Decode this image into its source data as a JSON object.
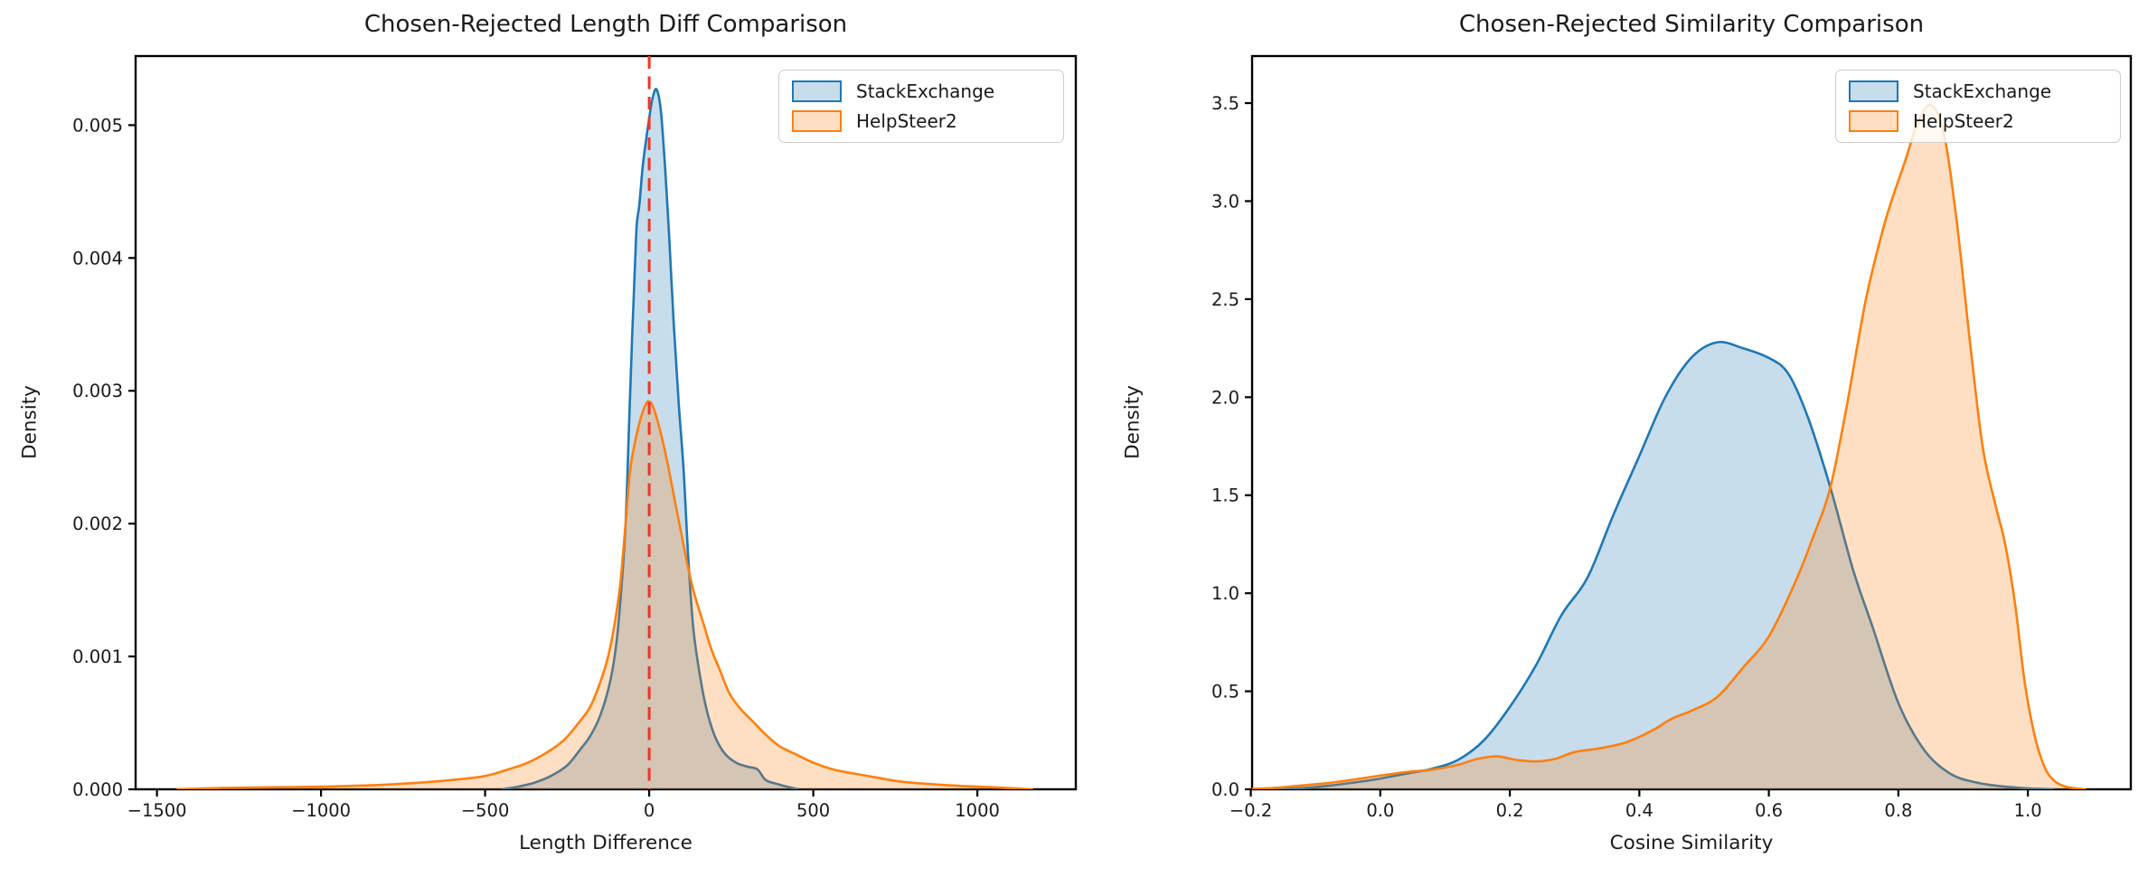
{
  "figure": {
    "background": "#ffffff"
  },
  "colors": {
    "stackexchange_line": "#1f77b4",
    "helpsteer2_line": "#ff7f0e",
    "fill_alpha": 0.25,
    "zero_line_red": "#ee3524",
    "axis_color": "#000000",
    "legend_border": "#cccccc"
  },
  "legend": {
    "items": [
      {
        "label": "StackExchange",
        "color": "#1f77b4"
      },
      {
        "label": "HelpSteer2",
        "color": "#ff7f0e"
      }
    ]
  },
  "chart_data": [
    {
      "type": "area",
      "subtype": "kde-density",
      "title": "Chosen-Rejected Length Diff Comparison",
      "xlabel": "Length Difference",
      "ylabel": "Density",
      "xlim": [
        -1565,
        1300
      ],
      "ylim": [
        0,
        0.00552
      ],
      "grid": false,
      "legend_position": "upper right",
      "xticks": {
        "values": [
          -1500,
          -1000,
          -500,
          0,
          500,
          1000
        ],
        "labels": [
          "−1500",
          "−1000",
          "−500",
          "0",
          "500",
          "1000"
        ]
      },
      "yticks": {
        "values": [
          0,
          0.001,
          0.002,
          0.003,
          0.004,
          0.005
        ],
        "labels": [
          "0.000",
          "0.001",
          "0.002",
          "0.003",
          "0.004",
          "0.005"
        ]
      },
      "vline": {
        "x": 0,
        "color": "#ee3524",
        "style": "dashed"
      },
      "series": [
        {
          "name": "StackExchange",
          "color": "#1f77b4",
          "peak": {
            "x": 22,
            "y": 0.00527
          },
          "points": [
            [
              -450,
              0
            ],
            [
              -400,
              2e-05
            ],
            [
              -350,
              5e-05
            ],
            [
              -300,
              0.0001
            ],
            [
              -250,
              0.00018
            ],
            [
              -210,
              0.0003
            ],
            [
              -180,
              0.0004
            ],
            [
              -150,
              0.00055
            ],
            [
              -120,
              0.0008
            ],
            [
              -100,
              0.0011
            ],
            [
              -85,
              0.0015
            ],
            [
              -72,
              0.002
            ],
            [
              -62,
              0.0027
            ],
            [
              -52,
              0.0034
            ],
            [
              -44,
              0.0039
            ],
            [
              -38,
              0.00425
            ],
            [
              -30,
              0.0044
            ],
            [
              -20,
              0.00468
            ],
            [
              -10,
              0.00488
            ],
            [
              0,
              0.00505
            ],
            [
              10,
              0.0052
            ],
            [
              22,
              0.00527
            ],
            [
              35,
              0.00512
            ],
            [
              48,
              0.0047
            ],
            [
              60,
              0.0042
            ],
            [
              75,
              0.0035
            ],
            [
              90,
              0.0029
            ],
            [
              105,
              0.0024
            ],
            [
              120,
              0.0017
            ],
            [
              135,
              0.0012
            ],
            [
              155,
              0.00085
            ],
            [
              175,
              0.0006
            ],
            [
              200,
              0.0004
            ],
            [
              230,
              0.00027
            ],
            [
              265,
              0.0002
            ],
            [
              300,
              0.00017
            ],
            [
              330,
              0.00015
            ],
            [
              355,
              7e-05
            ],
            [
              390,
              4e-05
            ],
            [
              420,
              2e-05
            ],
            [
              455,
              0
            ]
          ]
        },
        {
          "name": "HelpSteer2",
          "color": "#ff7f0e",
          "peak": {
            "x": 0,
            "y": 0.00292
          },
          "points": [
            [
              -1440,
              0
            ],
            [
              -1300,
              1e-05
            ],
            [
              -1150,
              1.5e-05
            ],
            [
              -1000,
              2e-05
            ],
            [
              -850,
              3e-05
            ],
            [
              -700,
              5e-05
            ],
            [
              -600,
              7e-05
            ],
            [
              -500,
              0.0001
            ],
            [
              -430,
              0.00015
            ],
            [
              -370,
              0.0002
            ],
            [
              -310,
              0.00028
            ],
            [
              -260,
              0.00037
            ],
            [
              -215,
              0.0005
            ],
            [
              -180,
              0.00062
            ],
            [
              -150,
              0.0008
            ],
            [
              -125,
              0.001
            ],
            [
              -105,
              0.00125
            ],
            [
              -88,
              0.00155
            ],
            [
              -72,
              0.002
            ],
            [
              -58,
              0.0024
            ],
            [
              -42,
              0.00263
            ],
            [
              -25,
              0.0028
            ],
            [
              -10,
              0.0029
            ],
            [
              0,
              0.00292
            ],
            [
              12,
              0.00288
            ],
            [
              28,
              0.00275
            ],
            [
              45,
              0.00258
            ],
            [
              62,
              0.00238
            ],
            [
              80,
              0.00215
            ],
            [
              100,
              0.0019
            ],
            [
              120,
              0.00165
            ],
            [
              140,
              0.00145
            ],
            [
              165,
              0.00125
            ],
            [
              190,
              0.00105
            ],
            [
              215,
              0.0009
            ],
            [
              245,
              0.00072
            ],
            [
              280,
              0.0006
            ],
            [
              320,
              0.0005
            ],
            [
              360,
              0.0004
            ],
            [
              400,
              0.00032
            ],
            [
              450,
              0.00026
            ],
            [
              500,
              0.0002
            ],
            [
              560,
              0.00015
            ],
            [
              620,
              0.00012
            ],
            [
              690,
              9e-05
            ],
            [
              760,
              6e-05
            ],
            [
              850,
              4e-05
            ],
            [
              950,
              2.5e-05
            ],
            [
              1050,
              1.5e-05
            ],
            [
              1170,
              0
            ]
          ]
        }
      ]
    },
    {
      "type": "area",
      "subtype": "kde-density",
      "title": "Chosen-Rejected Similarity Comparison",
      "xlabel": "Cosine Similarity",
      "ylabel": "Density",
      "xlim": [
        -0.198,
        1.159
      ],
      "ylim": [
        0,
        3.74
      ],
      "grid": false,
      "legend_position": "upper right",
      "xticks": {
        "values": [
          -0.2,
          0.0,
          0.2,
          0.4,
          0.6,
          0.8,
          1.0
        ],
        "labels": [
          "−0.2",
          "0.0",
          "0.2",
          "0.4",
          "0.6",
          "0.8",
          "1.0"
        ]
      },
      "yticks": {
        "values": [
          0.0,
          0.5,
          1.0,
          1.5,
          2.0,
          2.5,
          3.0,
          3.5
        ],
        "labels": [
          "0.0",
          "0.5",
          "1.0",
          "1.5",
          "2.0",
          "2.5",
          "3.0",
          "3.5"
        ]
      },
      "series": [
        {
          "name": "StackExchange",
          "color": "#1f77b4",
          "peak": {
            "x": 0.52,
            "y": 2.28
          },
          "points": [
            [
              -0.16,
              0
            ],
            [
              -0.12,
              0.006
            ],
            [
              -0.08,
              0.018
            ],
            [
              -0.04,
              0.035
            ],
            [
              0,
              0.055
            ],
            [
              0.04,
              0.08
            ],
            [
              0.08,
              0.105
            ],
            [
              0.12,
              0.15
            ],
            [
              0.16,
              0.25
            ],
            [
              0.2,
              0.42
            ],
            [
              0.24,
              0.63
            ],
            [
              0.28,
              0.89
            ],
            [
              0.32,
              1.08
            ],
            [
              0.36,
              1.4
            ],
            [
              0.4,
              1.7
            ],
            [
              0.44,
              2.0
            ],
            [
              0.48,
              2.2
            ],
            [
              0.52,
              2.28
            ],
            [
              0.56,
              2.25
            ],
            [
              0.6,
              2.2
            ],
            [
              0.63,
              2.12
            ],
            [
              0.66,
              1.9
            ],
            [
              0.695,
              1.54
            ],
            [
              0.73,
              1.12
            ],
            [
              0.76,
              0.83
            ],
            [
              0.8,
              0.44
            ],
            [
              0.84,
              0.2
            ],
            [
              0.88,
              0.08
            ],
            [
              0.92,
              0.035
            ],
            [
              0.96,
              0.015
            ],
            [
              1.0,
              0.005
            ],
            [
              1.04,
              0
            ]
          ]
        },
        {
          "name": "HelpSteer2",
          "color": "#ff7f0e",
          "peak": {
            "x": 0.85,
            "y": 3.49
          },
          "points": [
            [
              -0.198,
              0.002
            ],
            [
              -0.16,
              0.008
            ],
            [
              -0.12,
              0.02
            ],
            [
              -0.08,
              0.032
            ],
            [
              -0.04,
              0.05
            ],
            [
              0,
              0.07
            ],
            [
              0.04,
              0.088
            ],
            [
              0.08,
              0.1
            ],
            [
              0.12,
              0.125
            ],
            [
              0.15,
              0.155
            ],
            [
              0.18,
              0.168
            ],
            [
              0.21,
              0.15
            ],
            [
              0.24,
              0.142
            ],
            [
              0.27,
              0.155
            ],
            [
              0.3,
              0.19
            ],
            [
              0.34,
              0.21
            ],
            [
              0.38,
              0.24
            ],
            [
              0.42,
              0.3
            ],
            [
              0.45,
              0.36
            ],
            [
              0.48,
              0.4
            ],
            [
              0.52,
              0.47
            ],
            [
              0.56,
              0.62
            ],
            [
              0.6,
              0.78
            ],
            [
              0.64,
              1.05
            ],
            [
              0.67,
              1.3
            ],
            [
              0.695,
              1.54
            ],
            [
              0.72,
              1.95
            ],
            [
              0.75,
              2.5
            ],
            [
              0.78,
              2.9
            ],
            [
              0.81,
              3.2
            ],
            [
              0.83,
              3.4
            ],
            [
              0.85,
              3.49
            ],
            [
              0.87,
              3.35
            ],
            [
              0.89,
              2.9
            ],
            [
              0.91,
              2.3
            ],
            [
              0.93,
              1.75
            ],
            [
              0.95,
              1.45
            ],
            [
              0.965,
              1.25
            ],
            [
              0.98,
              0.95
            ],
            [
              0.995,
              0.55
            ],
            [
              1.01,
              0.28
            ],
            [
              1.025,
              0.12
            ],
            [
              1.04,
              0.045
            ],
            [
              1.06,
              0.012
            ],
            [
              1.09,
              0
            ]
          ]
        }
      ]
    }
  ]
}
